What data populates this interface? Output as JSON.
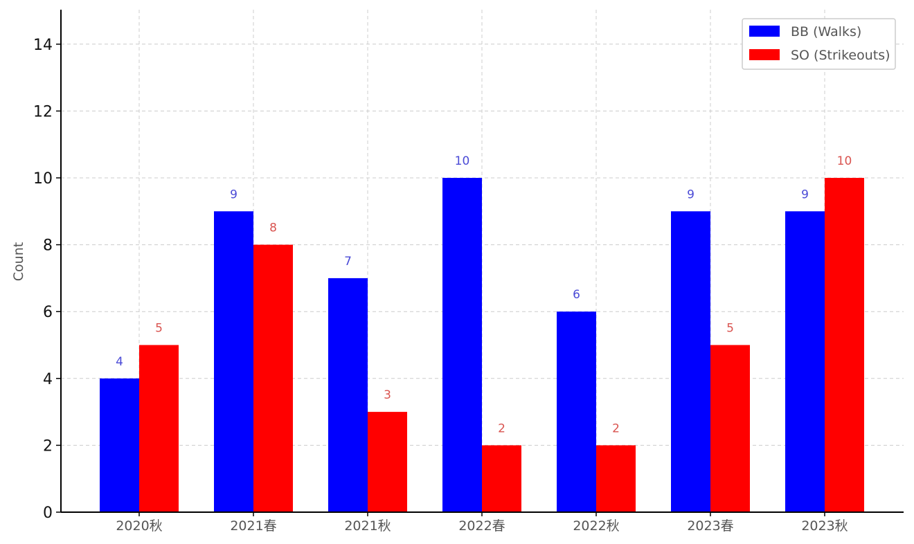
{
  "chart_data": {
    "type": "bar",
    "categories": [
      "2020秋",
      "2021春",
      "2021秋",
      "2022春",
      "2022秋",
      "2023春",
      "2023秋"
    ],
    "series": [
      {
        "name": "BB (Walks)",
        "values": [
          4,
          9,
          7,
          10,
          6,
          9,
          9
        ],
        "color": "#0000ff",
        "label_color": "#4a4ad6"
      },
      {
        "name": "SO (Strikeouts)",
        "values": [
          5,
          8,
          3,
          2,
          2,
          5,
          10
        ],
        "color": "#ff0000",
        "label_color": "#d9534f"
      }
    ],
    "xlabel": "",
    "ylabel": "Count",
    "ylim": [
      0,
      15
    ],
    "yticks": [
      0,
      2,
      4,
      6,
      8,
      10,
      12,
      14
    ],
    "grid": true,
    "legend_position": "top-right"
  }
}
